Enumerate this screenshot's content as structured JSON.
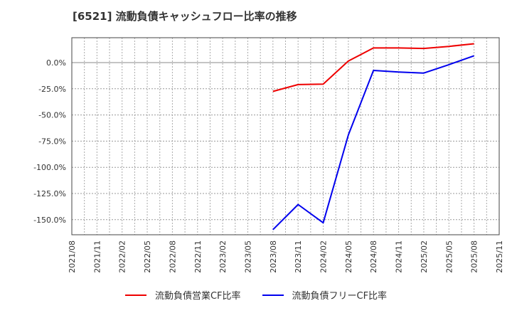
{
  "title": "[6521]  流動負債キャッシュフロー比率の推移",
  "legend": [
    {
      "label": "流動負債営業CF比率",
      "color": "#ee0000"
    },
    {
      "label": "流動負債フリーCF比率",
      "color": "#0000ee"
    }
  ],
  "chart_data": {
    "type": "line",
    "title": "[6521]  流動負債キャッシュフロー比率の推移",
    "xlabel": "",
    "ylabel": "",
    "x_tick_labels": [
      "2021/08",
      "2021/11",
      "2022/02",
      "2022/05",
      "2022/08",
      "2022/11",
      "2023/02",
      "2023/05",
      "2023/08",
      "2023/11",
      "2024/02",
      "2024/05",
      "2024/08",
      "2024/11",
      "2025/02",
      "2025/05",
      "2025/08",
      "2025/11"
    ],
    "y_tick_labels": [
      "0.0%",
      "-25.0%",
      "-50.0%",
      "-75.0%",
      "-100.0%",
      "-125.0%",
      "-150.0%"
    ],
    "y_ticks": [
      0,
      -25,
      -50,
      -75,
      -100,
      -125,
      -150
    ],
    "ylim": [
      -165,
      24
    ],
    "grid": true,
    "legend_position": "bottom",
    "x": [
      "2023/08",
      "2023/11",
      "2024/02",
      "2024/05",
      "2024/08",
      "2024/11",
      "2025/02",
      "2025/05",
      "2025/08"
    ],
    "series": [
      {
        "name": "流動負債営業CF比率",
        "color": "#ee0000",
        "values": [
          -27.5,
          -21.0,
          -20.5,
          1.5,
          14.0,
          14.0,
          13.5,
          15.5,
          18.0
        ]
      },
      {
        "name": "流動負債フリーCF比率",
        "color": "#0000ee",
        "values": [
          -159.5,
          -135.5,
          -153.0,
          -69.0,
          -7.5,
          -9.0,
          -10.0,
          -2.0,
          6.5
        ]
      }
    ]
  }
}
